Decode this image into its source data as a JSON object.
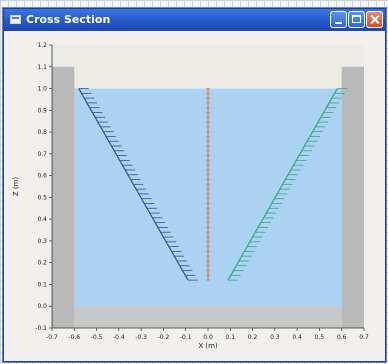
{
  "window": {
    "title": "Cross Section"
  },
  "colors": {
    "water": "#a9d3f1",
    "air": "#ecebe6",
    "wall": "#b9b9b9",
    "floor": "#c8c8c8",
    "left_line": "#3b4f8a",
    "center_line": "#e07a55",
    "right_line": "#3aa37f"
  },
  "chart_data": {
    "type": "line",
    "xlabel": "X (m)",
    "ylabel": "Z (m)",
    "xlim": [
      -0.7,
      0.7
    ],
    "ylim": [
      -0.1,
      1.2
    ],
    "x_ticks": [
      "-0.7",
      "-0.6",
      "-0.5",
      "-0.4",
      "-0.3",
      "-0.2",
      "-0.1",
      "0.0",
      "0.1",
      "0.2",
      "0.3",
      "0.4",
      "0.5",
      "0.6",
      "0.7"
    ],
    "y_ticks": [
      "-0.1",
      "0.0",
      "0.1",
      "0.2",
      "0.3",
      "0.4",
      "0.5",
      "0.6",
      "0.7",
      "0.8",
      "0.9",
      "1.0",
      "1.1",
      "1.2"
    ],
    "water_level": 1.0,
    "floor_level": 0.0,
    "walls": {
      "left_inner_x": -0.6,
      "right_inner_x": 0.6,
      "top": 1.1
    },
    "series": [
      {
        "x": [
          -0.09,
          -0.58
        ],
        "y": [
          0.12,
          1.0
        ]
      },
      {
        "x": [
          0.0,
          0.0
        ],
        "y": [
          0.12,
          1.0
        ]
      },
      {
        "x": [
          0.09,
          0.58
        ],
        "y": [
          0.12,
          1.0
        ]
      }
    ]
  }
}
